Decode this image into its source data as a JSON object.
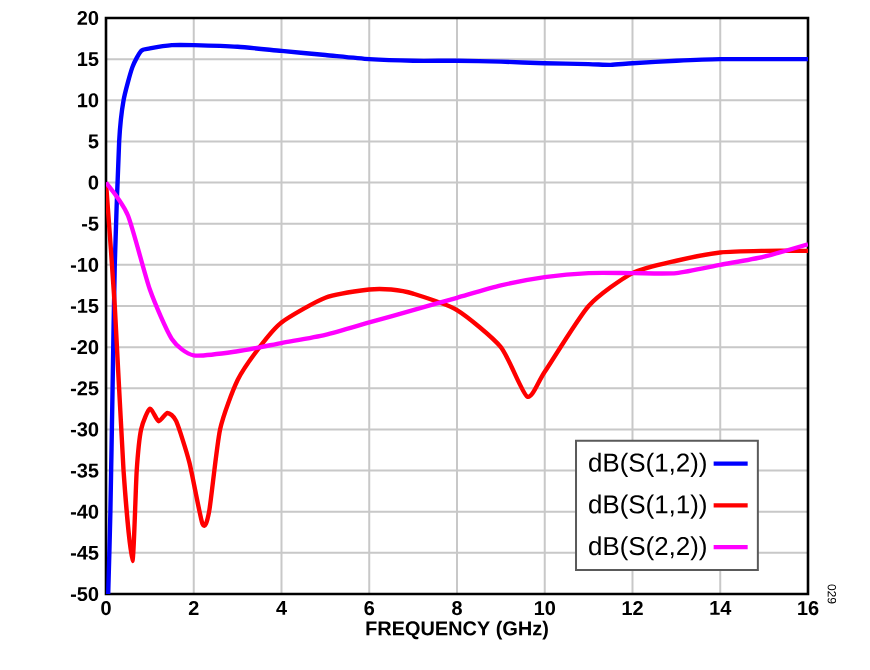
{
  "chart_data": {
    "type": "line",
    "xlabel": "FREQUENCY (GHz)",
    "xlim": [
      0,
      16
    ],
    "ylim": [
      -50,
      20
    ],
    "xticks": [
      0,
      2,
      4,
      6,
      8,
      10,
      12,
      14,
      16
    ],
    "yticks": [
      -50,
      -45,
      -40,
      -35,
      -30,
      -25,
      -20,
      -15,
      -10,
      -5,
      0,
      5,
      10,
      15,
      20
    ],
    "grid": true,
    "legend": "bottom right",
    "marker": "none",
    "line_style": "solid",
    "annotations": [
      "029"
    ],
    "series": [
      {
        "name": "dB(S(1,2))",
        "color": "#0000ff",
        "x": [
          0.05,
          0.1,
          0.15,
          0.2,
          0.3,
          0.4,
          0.6,
          0.8,
          1,
          1.5,
          2,
          3,
          4,
          5,
          6,
          7,
          8,
          9,
          10,
          11,
          11.5,
          12,
          13,
          14,
          15,
          16
        ],
        "values": [
          -50,
          -40,
          -25,
          -10,
          5,
          10,
          14,
          16,
          16.3,
          16.7,
          16.7,
          16.5,
          16,
          15.5,
          15,
          14.8,
          14.8,
          14.7,
          14.5,
          14.4,
          14.3,
          14.5,
          14.8,
          15,
          15,
          15
        ]
      },
      {
        "name": "dB(S(1,1))",
        "color": "#ff0000",
        "x": [
          0,
          0.2,
          0.4,
          0.6,
          0.7,
          0.8,
          1,
          1.2,
          1.4,
          1.6,
          1.9,
          2.2,
          2.35,
          2.6,
          3,
          3.5,
          4,
          5,
          6,
          6.5,
          7,
          8,
          9,
          9.6,
          10,
          11,
          12,
          13,
          14,
          15,
          16
        ],
        "values": [
          0,
          -15,
          -35,
          -46,
          -35,
          -30,
          -27.5,
          -29,
          -28,
          -29,
          -34,
          -41.5,
          -40,
          -30,
          -24,
          -20,
          -17,
          -14,
          -13,
          -13,
          -13.5,
          -15.5,
          -20,
          -26,
          -23,
          -15,
          -11,
          -9.5,
          -8.5,
          -8.3,
          -8.3
        ]
      },
      {
        "name": "dB(S(2,2))",
        "color": "#ff00ff",
        "x": [
          0,
          0.5,
          1,
          1.5,
          2,
          3,
          4,
          5,
          6,
          7,
          8,
          9,
          10,
          11,
          12,
          13,
          14,
          15,
          16
        ],
        "values": [
          0,
          -4,
          -13,
          -19,
          -21,
          -20.5,
          -19.5,
          -18.5,
          -17,
          -15.5,
          -14,
          -12.5,
          -11.5,
          -11,
          -11,
          -11,
          -10,
          -9,
          -7.5
        ]
      }
    ]
  }
}
